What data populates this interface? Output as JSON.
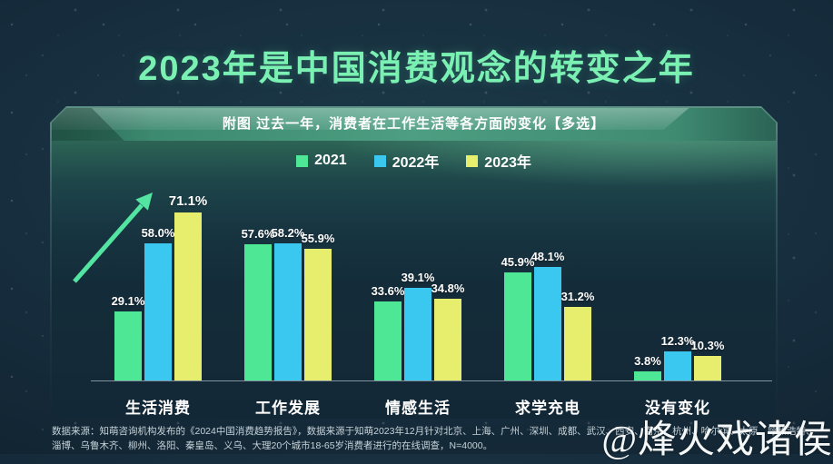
{
  "title": "2023年是中国消费观念的转变之年",
  "banner": "附图 过去一年，消费者在工作生活等各方面的变化【多选】",
  "chart_data": {
    "type": "bar",
    "title": "过去一年，消费者在工作生活等各方面的变化【多选】",
    "categories": [
      "生活消费",
      "工作发展",
      "情感生活",
      "求学充电",
      "没有变化"
    ],
    "series": [
      {
        "name": "2021",
        "color": "#4de795",
        "values": [
          29.1,
          57.6,
          33.6,
          45.9,
          3.8
        ]
      },
      {
        "name": "2022年",
        "color": "#3ac8f0",
        "values": [
          58.0,
          58.2,
          39.1,
          48.1,
          12.3
        ]
      },
      {
        "name": "2023年",
        "color": "#e7ee6e",
        "values": [
          71.1,
          55.9,
          34.8,
          31.2,
          10.3
        ]
      }
    ],
    "unit": "%",
    "ylim": [
      0,
      80
    ],
    "grid": false,
    "legend_position": "top-center",
    "value_labels": true,
    "annotation": "rising-trend-arrow-on-first-category"
  },
  "footer": {
    "line1": "数据来源：知萌咨询机构发布的《2024中国消费趋势报告》，数据来源于知萌2023年12月针对北京、上海、广州、深圳、成都、武汉、西安、南京、杭州、哈尔滨、太原、呼和浩特、",
    "line2": "淄博、乌鲁木齐、柳州、洛阳、秦皇岛、义乌、大理20个城市18-65岁消费者进行的在线调查，N=4000。"
  },
  "watermark": "@烽火戏诸侯",
  "colors": {
    "background": "#13283a",
    "title": "#7bf0b3",
    "banner_green": "#3f8d74",
    "bar_2021": "#4de795",
    "bar_2022": "#3ac8f0",
    "bar_2023": "#e7ee6e",
    "axis_line": "#c2d2da",
    "footer_text": "#c6d2d8",
    "arrow": "#53e4a1"
  }
}
